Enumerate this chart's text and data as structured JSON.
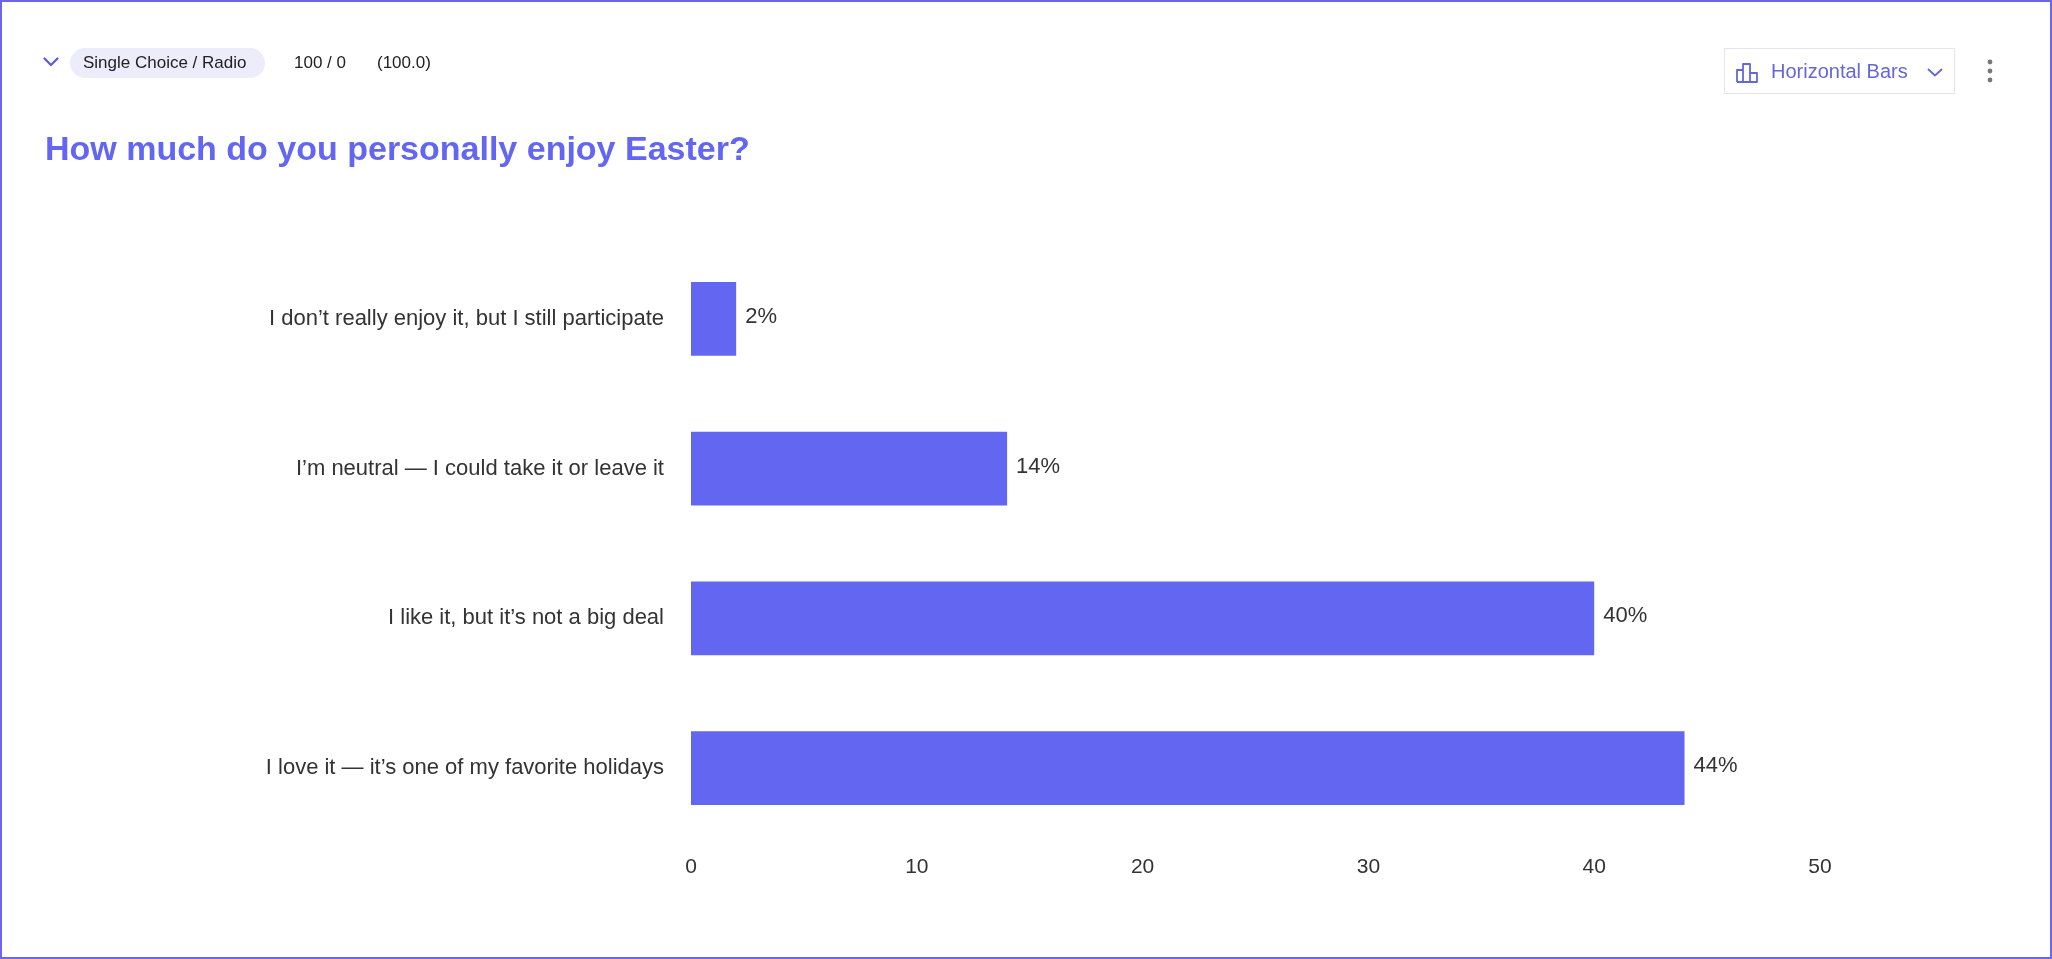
{
  "chart_data": {
    "type": "bar",
    "orientation": "horizontal",
    "title": "How much do you personally enjoy Easter?",
    "annotations": [
      "Single Choice / Radio",
      "100 / 0",
      "(100.0)",
      "Horizontal Bars"
    ],
    "categories": [
      "I don’t really enjoy it, but I still participate",
      "I’m neutral — I could take it or leave it",
      "I like it, but it’s not a big deal",
      "I love it — it’s one of my favorite holidays"
    ],
    "values": [
      2,
      14,
      40,
      44
    ],
    "value_labels": [
      "2%",
      "14%",
      "40%",
      "44%"
    ],
    "color": "#6366f1",
    "xlim": [
      0,
      50
    ],
    "xticks": [
      0,
      10,
      20,
      30,
      40,
      50
    ]
  }
}
